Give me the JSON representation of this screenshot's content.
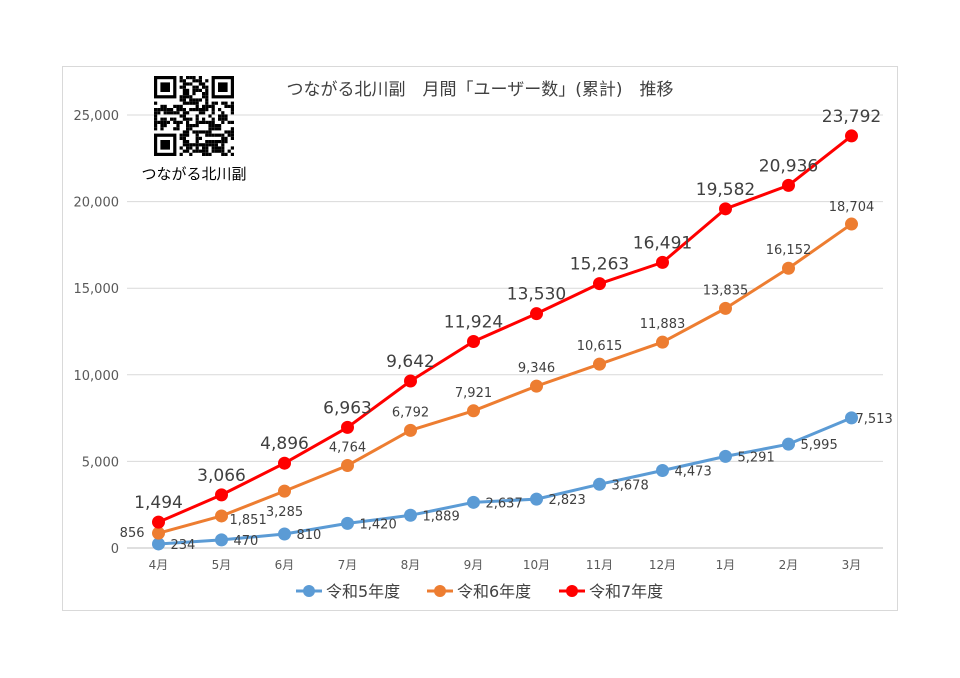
{
  "qr_caption": "つながる北川副",
  "chart_data": {
    "type": "line",
    "title": "つながる北川副　月間「ユーザー数」(累計)　推移",
    "categories": [
      "4月",
      "5月",
      "6月",
      "7月",
      "8月",
      "9月",
      "10月",
      "11月",
      "12月",
      "1月",
      "2月",
      "3月"
    ],
    "ylim": [
      0,
      25000
    ],
    "yticks": [
      0,
      5000,
      10000,
      15000,
      20000,
      25000
    ],
    "ytick_labels": [
      "0",
      "5,000",
      "10,000",
      "15,000",
      "20,000",
      "25,000"
    ],
    "grid": true,
    "legend_position": "bottom",
    "series": [
      {
        "name": "令和5年度",
        "color": "#5b9bd5",
        "values": [
          234,
          470,
          810,
          1420,
          1889,
          2637,
          2823,
          3678,
          4473,
          5291,
          5995,
          7513
        ],
        "labels": [
          "234",
          "470",
          "810",
          "1,420",
          "1,889",
          "2,637",
          "2,823",
          "3,678",
          "4,473",
          "5,291",
          "5,995",
          "7,513"
        ]
      },
      {
        "name": "令和6年度",
        "color": "#ed7d31",
        "values": [
          856,
          1851,
          3285,
          4764,
          6792,
          7921,
          9346,
          10615,
          11883,
          13835,
          16152,
          18704
        ],
        "labels": [
          "856",
          "1,851",
          "3,285",
          "4,764",
          "6,792",
          "7,921",
          "9,346",
          "10,615",
          "11,883",
          "13,835",
          "16,152",
          "18,704"
        ]
      },
      {
        "name": "令和7年度",
        "color": "#ff0000",
        "values": [
          1494,
          3066,
          4896,
          6963,
          9642,
          11924,
          13530,
          15263,
          16491,
          19582,
          20936,
          23792
        ],
        "labels": [
          "1,494",
          "3,066",
          "4,896",
          "6,963",
          "9,642",
          "11,924",
          "13,530",
          "15,263",
          "16,491",
          "19,582",
          "20,936",
          "23,792"
        ]
      }
    ]
  }
}
